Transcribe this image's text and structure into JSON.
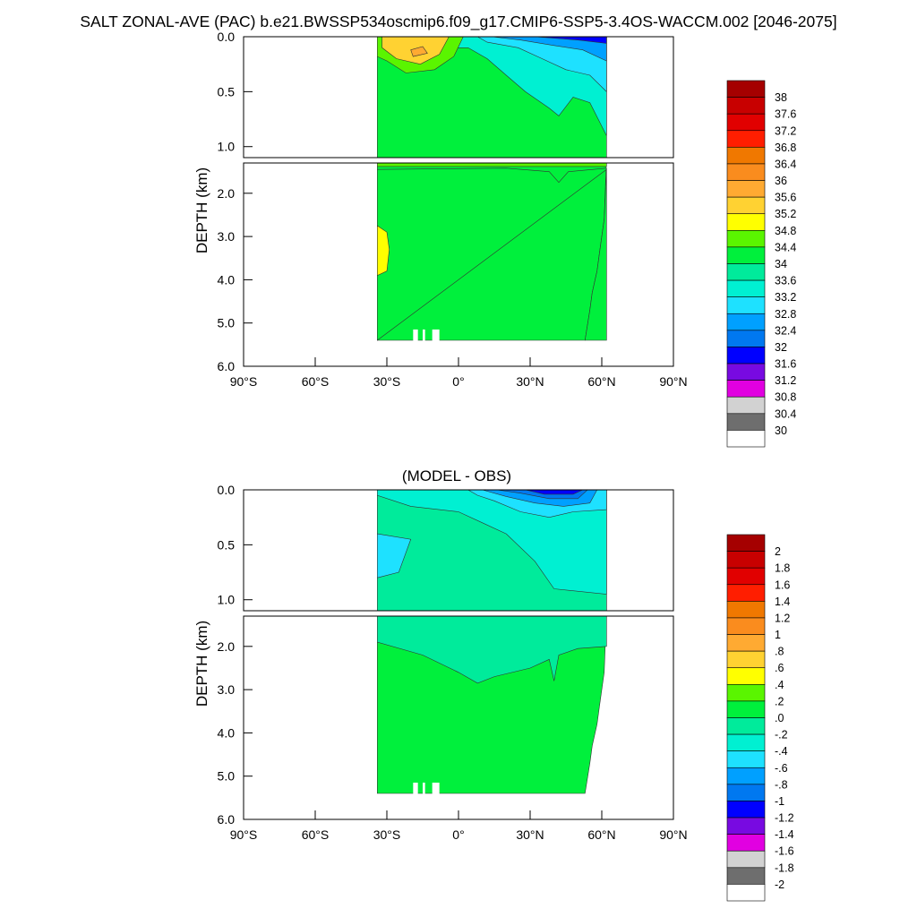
{
  "title": "SALT ZONAL-AVE (PAC) b.e21.BWSSP534oscmip6.f09_g17.CMIP6-SSP5-3.4OS-WACCM.002 [2046-2075]",
  "chart_data": [
    {
      "type": "heatmap",
      "title": "",
      "ylabel": "DEPTH (km)",
      "xlabel": "",
      "x_ticks": [
        "90°S",
        "60°S",
        "30°S",
        "0°",
        "30°N",
        "60°N",
        "90°N"
      ],
      "y_ticks_upper": [
        "0.0",
        "0.5",
        "1.0"
      ],
      "y_ticks_lower": [
        "2.0",
        "3.0",
        "4.0",
        "5.0",
        "6.0"
      ],
      "xlim": [
        -90,
        90
      ],
      "ylim": [
        6.0,
        0.0
      ],
      "colorbar": {
        "labels": [
          "38",
          "37.6",
          "37.2",
          "36.8",
          "36.4",
          "36",
          "35.6",
          "35.2",
          "34.8",
          "34.4",
          "34",
          "33.6",
          "33.2",
          "32.8",
          "32.4",
          "32",
          "31.6",
          "31.2",
          "30.8",
          "30.4",
          "30"
        ],
        "colors": [
          "#A50000",
          "#C80000",
          "#E10000",
          "#FF1E00",
          "#F07800",
          "#FA8C1E",
          "#FFAA32",
          "#FFD232",
          "#FFFF00",
          "#5AF500",
          "#00F03C",
          "#00EB9B",
          "#00F0D2",
          "#1EE1FF",
          "#00A0FF",
          "#0078F0",
          "#0000FF",
          "#780AE1",
          "#E100E1",
          "#D2D2D2",
          "#6E6E6E",
          "#FFFFFF"
        ]
      }
    },
    {
      "type": "heatmap",
      "title": "(MODEL - OBS)",
      "ylabel": "DEPTH (km)",
      "xlabel": "",
      "x_ticks": [
        "90°S",
        "60°S",
        "30°S",
        "0°",
        "30°N",
        "60°N",
        "90°N"
      ],
      "y_ticks_upper": [
        "0.0",
        "0.5",
        "1.0"
      ],
      "y_ticks_lower": [
        "2.0",
        "3.0",
        "4.0",
        "5.0",
        "6.0"
      ],
      "xlim": [
        -90,
        90
      ],
      "ylim": [
        6.0,
        0.0
      ],
      "colorbar": {
        "labels": [
          "2",
          "1.8",
          "1.6",
          "1.4",
          "1.2",
          "1",
          ".8",
          ".6",
          ".4",
          ".2",
          ".0",
          "-.2",
          "-.4",
          "-.6",
          "-.8",
          "-1",
          "-1.2",
          "-1.4",
          "-1.6",
          "-1.8",
          "-2"
        ],
        "colors": [
          "#A50000",
          "#C80000",
          "#E10000",
          "#FF1E00",
          "#F07800",
          "#FA8C1E",
          "#FFAA32",
          "#FFD232",
          "#FFFF00",
          "#5AF500",
          "#00F03C",
          "#00EB9B",
          "#00F0D2",
          "#1EE1FF",
          "#00A0FF",
          "#0078F0",
          "#0000FF",
          "#780AE1",
          "#E100E1",
          "#D2D2D2",
          "#6E6E6E",
          "#FFFFFF"
        ]
      }
    }
  ]
}
